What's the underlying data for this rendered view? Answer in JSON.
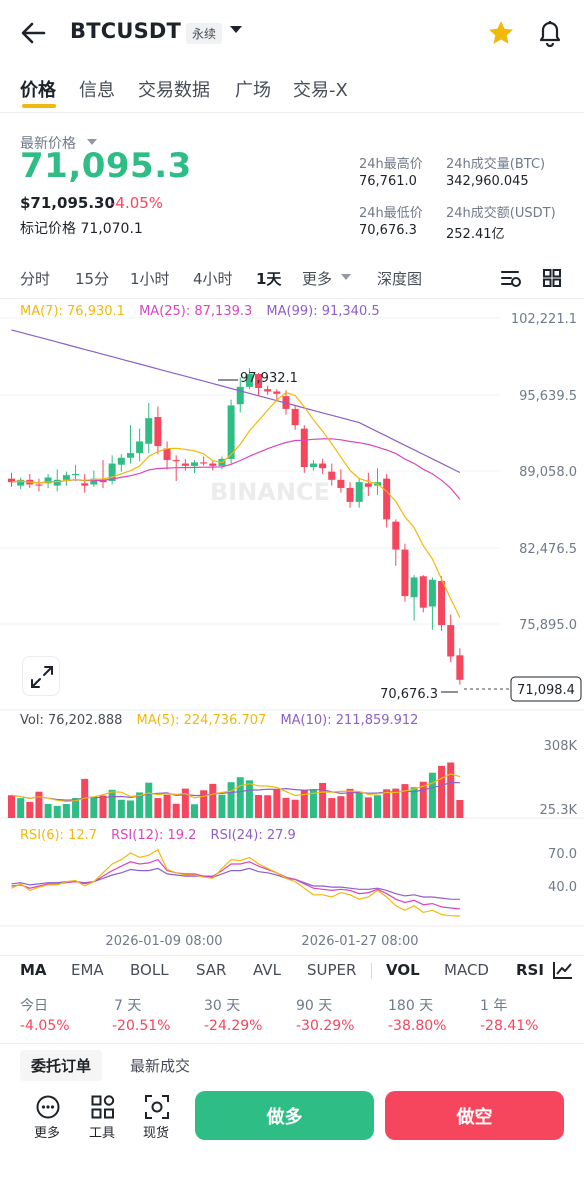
{
  "header": {
    "symbol": "BTCUSDT",
    "contract_type": "永续",
    "icons": [
      "back-arrow-icon",
      "chevron-down-icon",
      "star-icon",
      "bell-icon"
    ],
    "favorite_color": "#f0b90b"
  },
  "tabs": [
    {
      "label": "价格",
      "active": true
    },
    {
      "label": "信息"
    },
    {
      "label": "交易数据"
    },
    {
      "label": "广场"
    },
    {
      "label": "交易-X"
    }
  ],
  "price": {
    "latest_label": "最新价格",
    "last": "71,095.3",
    "usd_value": "$71,095.30",
    "change_pct": "-4.05%",
    "mark_price_label": "标记价格",
    "mark_price": "71,070.1"
  },
  "stats": {
    "high_label": "24h最高价",
    "high": "76,761.0",
    "low_label": "24h最低价",
    "low": "70,676.3",
    "vol_btc_label": "24h成交量(BTC)",
    "vol_btc": "342,960.045",
    "vol_usdt_label": "24h成交额(USDT)",
    "vol_usdt": "252.41亿"
  },
  "intervals": [
    "分时",
    "15分",
    "1小时",
    "4小时",
    "1天",
    "更多",
    "深度图"
  ],
  "active_interval": "1天",
  "chart": {
    "ma_legend": [
      {
        "label": "MA(7): 76,930.1",
        "color": "#f0b90b"
      },
      {
        "label": "MA(25): 87,139.3",
        "color": "#d846c0"
      },
      {
        "label": "MA(99): 91,340.5",
        "color": "#8e5fc9"
      }
    ],
    "price_axis": [
      "102,221.1",
      "95,639.5",
      "89,058.0",
      "82,476.5",
      "75,895.0"
    ],
    "max_label": "97,932.1",
    "min_label": "70,676.3",
    "current_tag": "71,098.4",
    "vol_legend": [
      {
        "label": "Vol: 76,202.888",
        "color": "#474d57"
      },
      {
        "label": "MA(5): 224,736.707",
        "color": "#f0b90b"
      },
      {
        "label": "MA(10): 211,859.912",
        "color": "#8e5fc9"
      }
    ],
    "vol_axis": [
      "308K",
      "25.3K"
    ],
    "rsi_legend": [
      {
        "label": "RSI(6): 12.7",
        "color": "#f0b90b"
      },
      {
        "label": "RSI(12): 19.2",
        "color": "#d846c0"
      },
      {
        "label": "RSI(24): 27.9",
        "color": "#8e5fc9"
      }
    ],
    "rsi_axis": [
      "70.0",
      "40.0"
    ],
    "dates": [
      "2026-01-09 08:00",
      "2026-01-27 08:00"
    ],
    "watermark": "BINANCE"
  },
  "chart_data": {
    "type": "candlestick",
    "ylim": [
      69313,
      102221.1
    ],
    "candles_ohlc": [
      [
        88400,
        88900,
        87700,
        88100
      ],
      [
        87800,
        88500,
        87500,
        88300
      ],
      [
        88300,
        88800,
        87600,
        87900
      ],
      [
        87900,
        88400,
        87300,
        87800
      ],
      [
        88000,
        88800,
        87600,
        88500
      ],
      [
        87800,
        89200,
        87300,
        88300
      ],
      [
        88300,
        89000,
        87800,
        88700
      ],
      [
        88700,
        89600,
        88200,
        88800
      ],
      [
        88000,
        88800,
        87200,
        87800
      ],
      [
        87900,
        89100,
        87700,
        88400
      ],
      [
        88300,
        90000,
        87600,
        88100
      ],
      [
        88200,
        90400,
        87900,
        89700
      ],
      [
        89600,
        90500,
        89000,
        90200
      ],
      [
        90200,
        93000,
        89700,
        90600
      ],
      [
        90600,
        92700,
        89900,
        91600
      ],
      [
        91400,
        94900,
        90600,
        93600
      ],
      [
        93700,
        94600,
        90500,
        91200
      ],
      [
        91000,
        91600,
        89200,
        90000
      ],
      [
        90000,
        90400,
        88200,
        89900
      ],
      [
        89700,
        90100,
        89100,
        89500
      ],
      [
        89500,
        90000,
        88900,
        89800
      ],
      [
        89800,
        90300,
        89500,
        89700
      ],
      [
        89700,
        90000,
        89100,
        89500
      ],
      [
        89500,
        90300,
        89200,
        90100
      ],
      [
        90100,
        95200,
        89700,
        94700
      ],
      [
        94800,
        97100,
        94100,
        96300
      ],
      [
        96300,
        97900,
        96100,
        97400
      ],
      [
        97400,
        97500,
        95500,
        96200
      ],
      [
        96100,
        96400,
        95600,
        95900
      ],
      [
        95900,
        96100,
        95200,
        95700
      ],
      [
        95500,
        96000,
        93900,
        94400
      ],
      [
        94400,
        94700,
        92600,
        93000
      ],
      [
        92700,
        93000,
        88900,
        89400
      ],
      [
        89400,
        90000,
        89100,
        89700
      ],
      [
        89700,
        90100,
        88800,
        89300
      ],
      [
        89000,
        89700,
        87800,
        88300
      ],
      [
        88300,
        89200,
        87200,
        87600
      ],
      [
        87600,
        88100,
        85900,
        86400
      ],
      [
        86400,
        88400,
        85900,
        88100
      ],
      [
        88000,
        88900,
        86900,
        87700
      ],
      [
        87800,
        89300,
        87000,
        88100
      ],
      [
        88400,
        88800,
        84200,
        84900
      ],
      [
        84700,
        84900,
        80900,
        82300
      ],
      [
        82300,
        82800,
        77800,
        78300
      ],
      [
        78200,
        80100,
        76200,
        79900
      ],
      [
        80000,
        80100,
        76900,
        77300
      ],
      [
        77400,
        79900,
        75400,
        79700
      ],
      [
        79600,
        80000,
        75300,
        75800
      ],
      [
        75800,
        76700,
        72600,
        73100
      ],
      [
        73200,
        73800,
        70676.3,
        71095.3
      ]
    ],
    "ma7_max": 97932.1,
    "ma7_min": 70676.3,
    "volumes_k": [
      96,
      84,
      68,
      111,
      59,
      51,
      59,
      84,
      165,
      88,
      95,
      119,
      77,
      74,
      108,
      149,
      84,
      98,
      60,
      124,
      58,
      117,
      144,
      98,
      151,
      172,
      159,
      97,
      96,
      120,
      85,
      77,
      117,
      121,
      148,
      84,
      92,
      123,
      111,
      87,
      96,
      121,
      124,
      143,
      130,
      153,
      191,
      220,
      234,
      76
    ],
    "vol_ylim": [
      25.3,
      308
    ],
    "rsi6": [
      38,
      42,
      36,
      39,
      41,
      41,
      44,
      45,
      40,
      44,
      52,
      60,
      64,
      70,
      66,
      68,
      73,
      55,
      52,
      50,
      50,
      48,
      47,
      56,
      64,
      63,
      66,
      60,
      56,
      52,
      47,
      44,
      38,
      32,
      32,
      30,
      34,
      32,
      28,
      30,
      36,
      30,
      22,
      18,
      22,
      16,
      18,
      14,
      13,
      12.7
    ],
    "rsi12": [
      40,
      41,
      38,
      40,
      42,
      42,
      43,
      44,
      42,
      44,
      49,
      54,
      58,
      62,
      60,
      61,
      64,
      54,
      52,
      51,
      51,
      49,
      49,
      54,
      60,
      60,
      62,
      58,
      55,
      52,
      48,
      46,
      42,
      38,
      37,
      36,
      37,
      36,
      33,
      34,
      37,
      33,
      28,
      25,
      27,
      23,
      24,
      21,
      20,
      19.2
    ],
    "rsi24": [
      42,
      43,
      41,
      42,
      43,
      43,
      44,
      44,
      43,
      44,
      47,
      50,
      52,
      55,
      54,
      54,
      56,
      51,
      50,
      49,
      49,
      49,
      48,
      51,
      54,
      54,
      56,
      53,
      52,
      50,
      47,
      46,
      43,
      40,
      40,
      39,
      39,
      38,
      37,
      37,
      38,
      36,
      33,
      31,
      32,
      30,
      30,
      29,
      28,
      27.9
    ],
    "rsi_ylim": [
      5,
      90
    ]
  },
  "indicators_main": [
    "MA",
    "EMA",
    "BOLL",
    "SAR",
    "AVL",
    "SUPER"
  ],
  "indicators_sub": [
    "VOL",
    "MACD",
    "RSI"
  ],
  "active_main": "MA",
  "active_sub": [
    "VOL",
    "RSI"
  ],
  "performance": [
    {
      "label": "今日",
      "value": "-4.05%"
    },
    {
      "label": "7 天",
      "value": "-20.51%"
    },
    {
      "label": "30 天",
      "value": "-24.29%"
    },
    {
      "label": "90 天",
      "value": "-30.29%"
    },
    {
      "label": "180 天",
      "value": "-38.80%"
    },
    {
      "label": "1 年",
      "value": "-28.41%"
    }
  ],
  "orders": {
    "tab_open": "委托订单",
    "tab_trades": "最新成交"
  },
  "footer": {
    "more": "更多",
    "tools": "工具",
    "spot": "现货",
    "long": "做多",
    "short": "做空",
    "up_color": "#2ebd85",
    "down_color": "#f6465d"
  }
}
